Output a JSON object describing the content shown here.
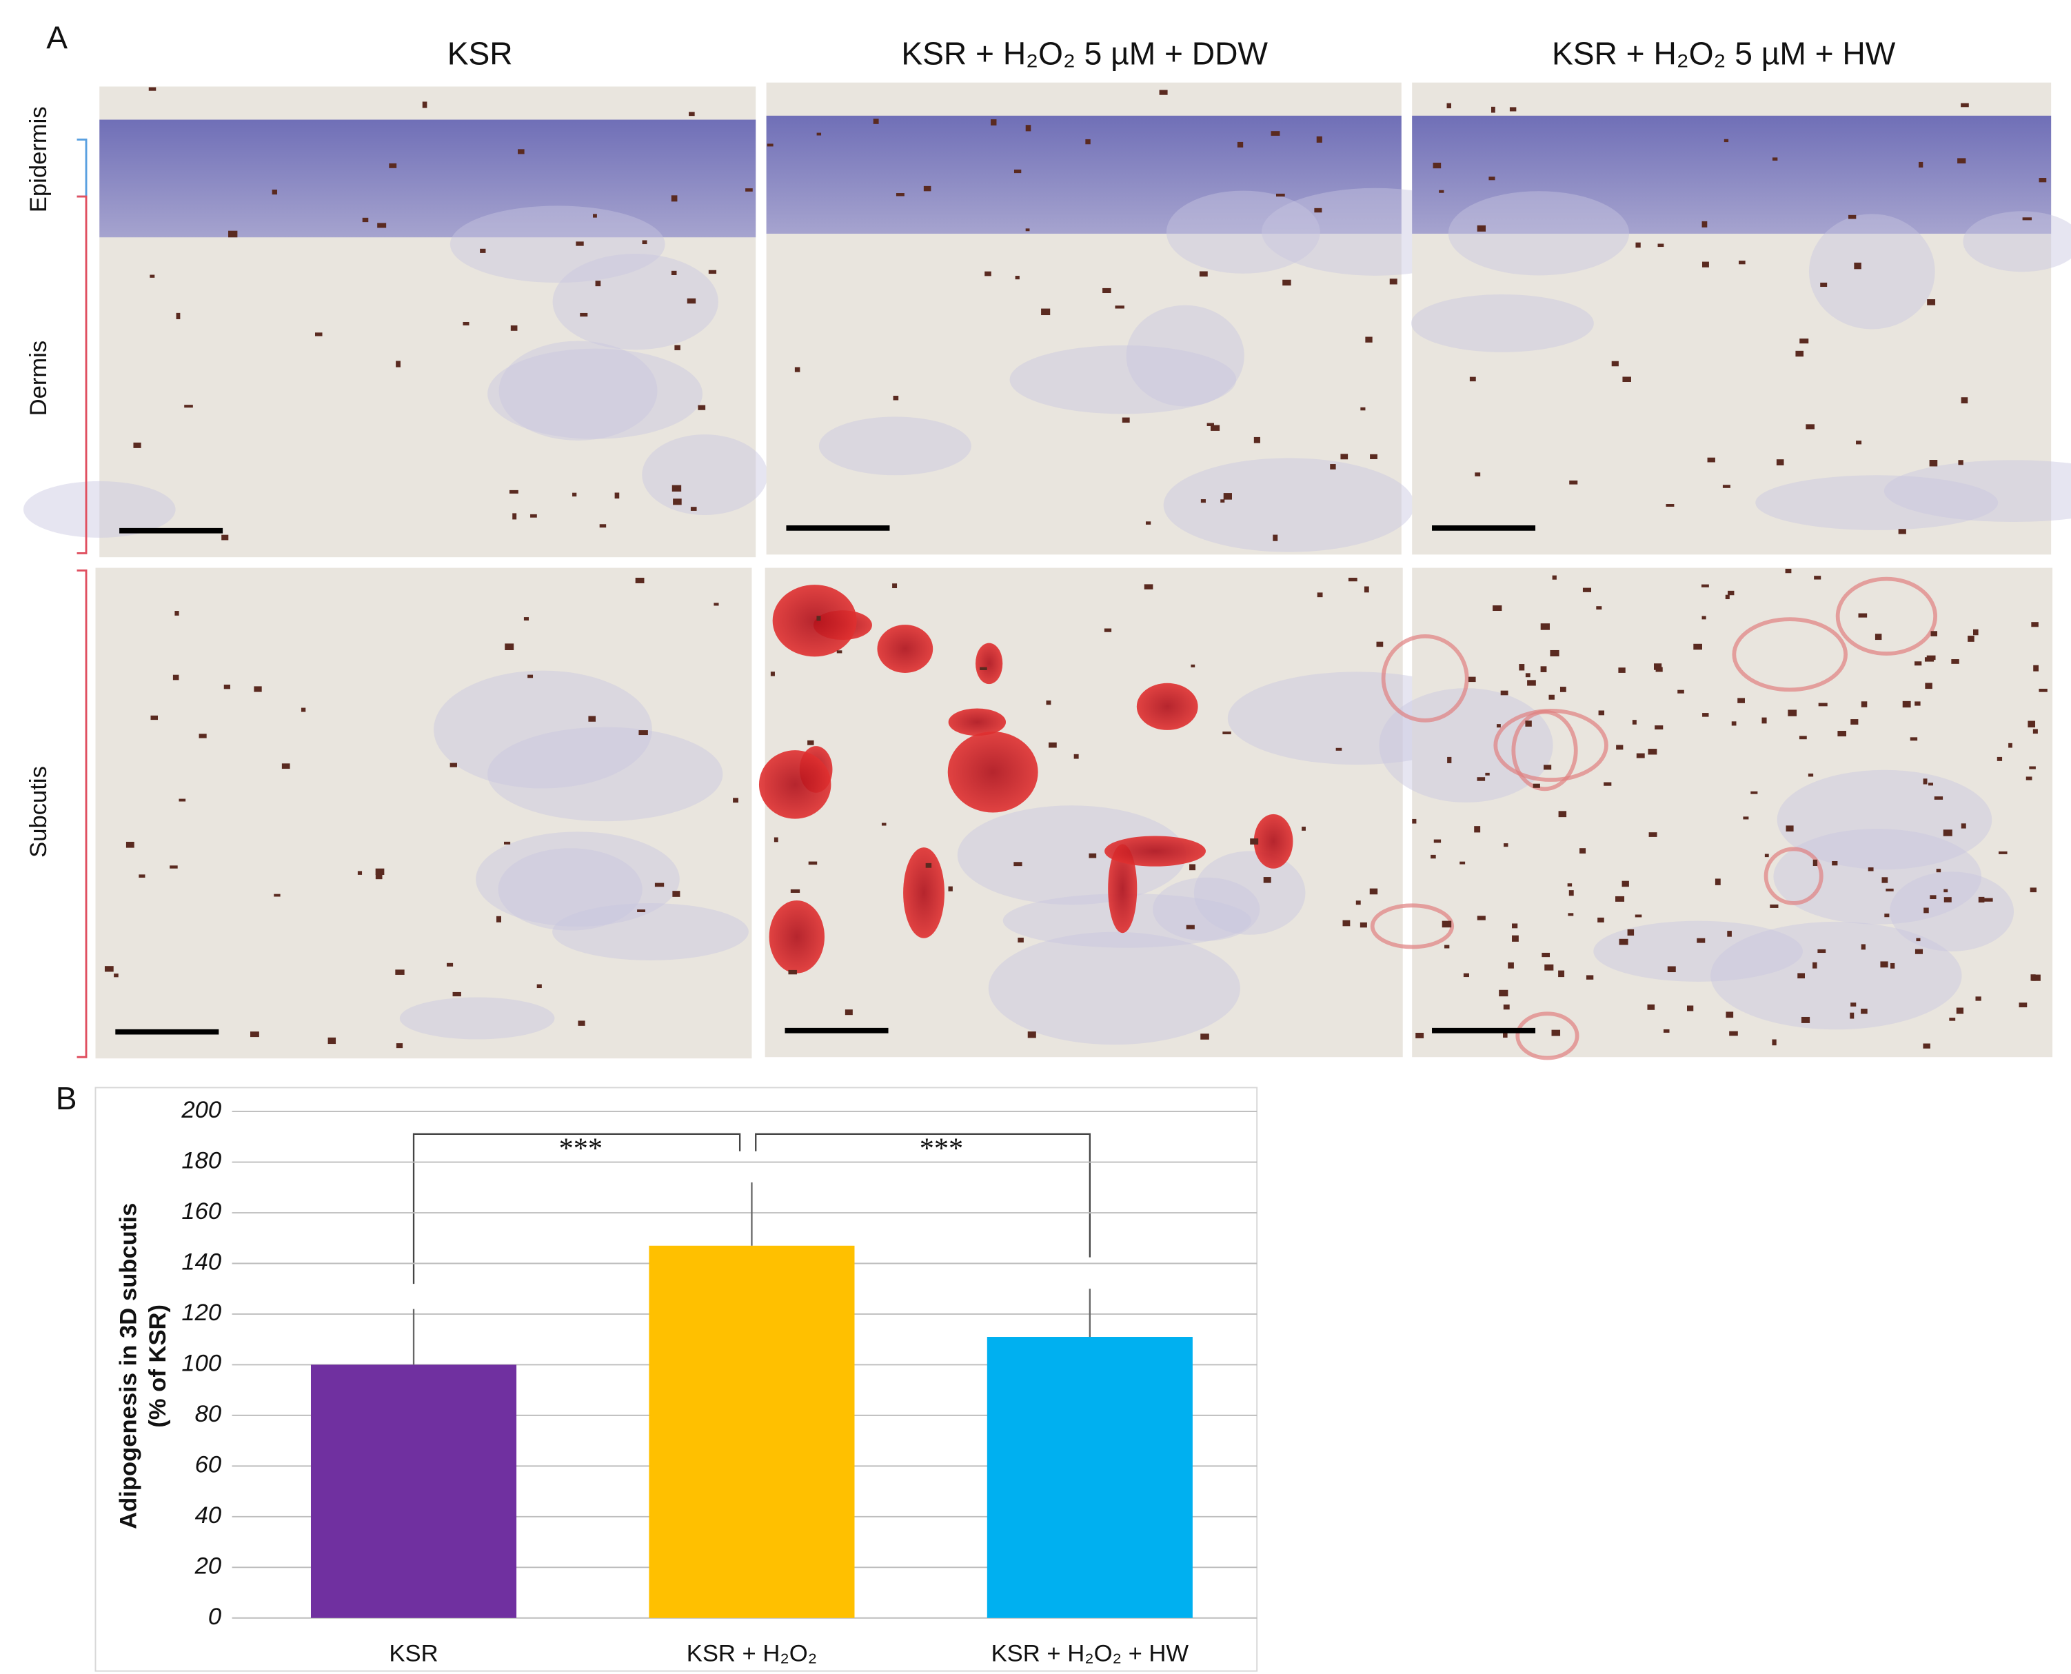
{
  "panel_a": {
    "label": "A",
    "columns": [
      "KSR",
      "KSR + H₂O₂  5 µM + DDW",
      "KSR + H₂O₂  5 µM + HW"
    ],
    "layers": [
      "Epidermis",
      "Dermis",
      "Subcutis"
    ]
  },
  "chart_data": {
    "type": "bar",
    "panel_label": "B",
    "y_label": [
      "Adipogenesis in 3D subcutis",
      "(% of KSR)"
    ],
    "categories": [
      "KSR",
      "KSR + H₂O₂",
      "KSR + H₂O₂ + HW"
    ],
    "values": [
      100,
      147,
      111
    ],
    "errors": [
      22,
      25,
      19
    ],
    "colors": [
      "#7030a0",
      "#ffc000",
      "#00b0f0"
    ],
    "ylim": [
      0,
      200
    ],
    "yticks": [
      0,
      20,
      40,
      60,
      80,
      100,
      120,
      140,
      160,
      180,
      200
    ],
    "grid": true,
    "annotations": [
      "***",
      "***"
    ]
  }
}
